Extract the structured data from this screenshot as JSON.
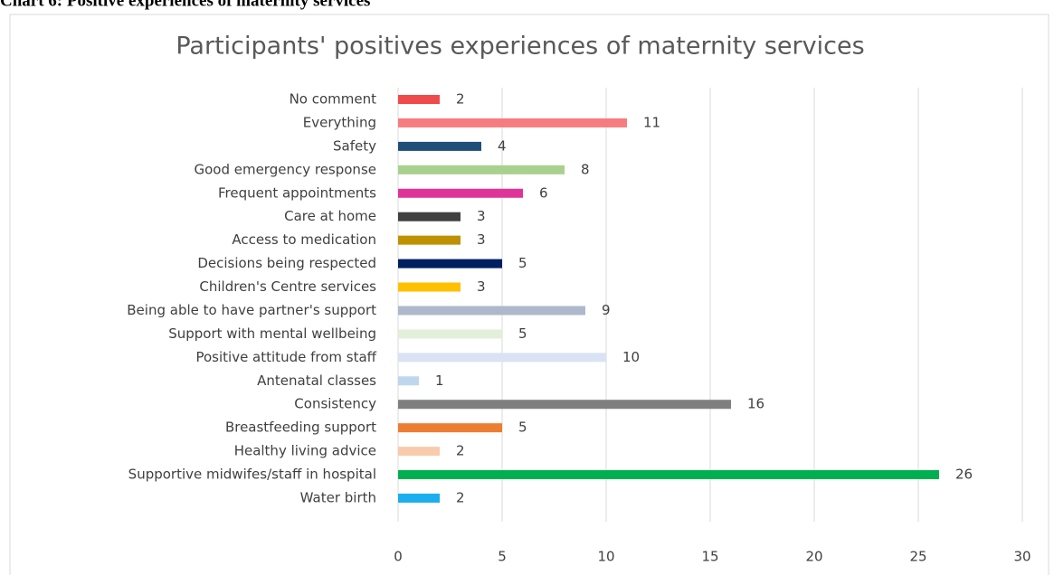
{
  "caption": "Chart 6: Positive experiences of maternity services",
  "chart_data": {
    "type": "bar",
    "orientation": "horizontal",
    "title": "Participants' positives experiences of maternity services",
    "categories": [
      "No comment",
      "Everything",
      "Safety",
      "Good emergency response",
      "Frequent appointments",
      "Care at home",
      "Access to medication",
      "Decisions being respected",
      "Children's Centre services",
      "Being able to have partner's support",
      "Support with mental wellbeing",
      "Positive attitude from staff",
      "Antenatal classes",
      "Consistency",
      "Breastfeeding support",
      "Healthy living advice",
      "Supportive midwifes/staff in hospital",
      "Water birth"
    ],
    "values": [
      2,
      11,
      4,
      8,
      6,
      3,
      3,
      5,
      3,
      9,
      5,
      10,
      1,
      16,
      5,
      2,
      26,
      2
    ],
    "colors": [
      "#f04a4a",
      "#f77c80",
      "#1f4e79",
      "#a9d18e",
      "#e0339a",
      "#404040",
      "#bf9000",
      "#002060",
      "#ffc000",
      "#adb9ca",
      "#e2efda",
      "#dae3f3",
      "#bdd7ee",
      "#7f7f7f",
      "#ed7d31",
      "#f8cbad",
      "#00b050",
      "#1cadef"
    ],
    "xlim": [
      0,
      30
    ],
    "xticks": [
      0,
      5,
      10,
      15,
      20,
      25,
      30
    ],
    "grid": true
  }
}
